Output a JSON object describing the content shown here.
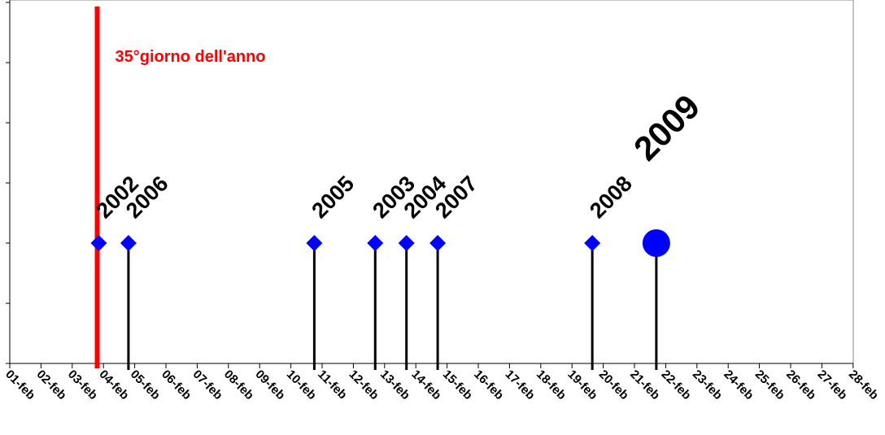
{
  "chart_data": {
    "type": "scatter",
    "x_axis": {
      "tick_labels": [
        "01-feb",
        "02-feb",
        "03-feb",
        "04-feb",
        "05-feb",
        "06-feb",
        "07-feb",
        "08-feb",
        "09-feb",
        "10-feb",
        "11-feb",
        "12-feb",
        "13-feb",
        "14-feb",
        "15-feb",
        "16-feb",
        "17-feb",
        "18-feb",
        "19-feb",
        "20-feb",
        "21-feb",
        "22-feb",
        "23-feb",
        "24-feb",
        "25-feb",
        "26-feb",
        "27-feb",
        "28-feb"
      ],
      "range_days": [
        1,
        28
      ]
    },
    "y_axis": {
      "tick_labels_shown": false,
      "range": [
        0,
        6
      ]
    },
    "grid": false,
    "colors": {
      "marker": "#0000ff",
      "reference_line": "#ff0000",
      "stem": "#000000"
    },
    "series": [
      {
        "year": "2002",
        "x": 3.85,
        "marker": "diamond",
        "stem": false
      },
      {
        "year": "2006",
        "x": 4.8,
        "marker": "diamond",
        "stem": true
      },
      {
        "year": "2005",
        "x": 10.75,
        "marker": "diamond",
        "stem": true
      },
      {
        "year": "2003",
        "x": 12.7,
        "marker": "diamond",
        "stem": true
      },
      {
        "year": "2004",
        "x": 13.7,
        "marker": "diamond",
        "stem": true
      },
      {
        "year": "2007",
        "x": 14.7,
        "marker": "diamond",
        "stem": true
      },
      {
        "year": "2008",
        "x": 19.65,
        "marker": "diamond",
        "stem": true
      },
      {
        "year": "2009",
        "x": 21.7,
        "marker": "circle",
        "stem": true
      }
    ],
    "y_value": 2,
    "reference_line": {
      "x": 3.8,
      "label": "35°giorno dell'anno"
    }
  }
}
